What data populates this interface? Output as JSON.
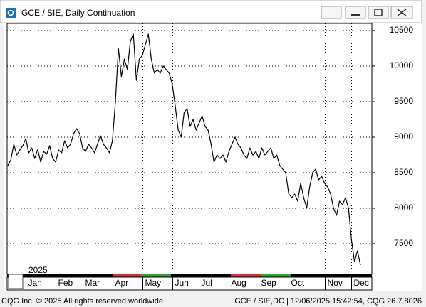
{
  "chart_data": {
    "type": "line",
    "title": "GCE / SIE, Daily Continuation",
    "year_label": "2025",
    "categories": [
      null,
      null,
      null,
      null,
      null,
      null,
      "Jan",
      null,
      null,
      null,
      null,
      null,
      null,
      null,
      null,
      null,
      "Feb",
      null,
      null,
      null,
      null,
      null,
      null,
      null,
      null,
      "Mar",
      null,
      null,
      null,
      null,
      null,
      null,
      null,
      null,
      null,
      "Apr",
      null,
      null,
      null,
      null,
      null,
      null,
      null,
      null,
      null,
      "May",
      null,
      null,
      null,
      null,
      null,
      null,
      null,
      null,
      null,
      "Jun",
      null,
      null,
      null,
      null,
      null,
      null,
      null,
      null,
      "Jul",
      null,
      null,
      null,
      null,
      null,
      null,
      null,
      null,
      null,
      "Aug",
      null,
      null,
      null,
      null,
      null,
      null,
      null,
      null,
      null,
      "Sep",
      null,
      null,
      null,
      null,
      null,
      null,
      null,
      null,
      null,
      "Oct",
      null,
      null,
      null,
      null,
      null,
      null,
      null,
      null,
      null,
      null,
      null,
      "Nov",
      null,
      null,
      null,
      null,
      null,
      null,
      null,
      null,
      "Dec",
      null,
      null,
      null
    ],
    "values": [
      8600,
      8680,
      8900,
      8750,
      8820,
      8880,
      8980,
      8780,
      8850,
      8700,
      8830,
      8650,
      8800,
      8760,
      8880,
      8700,
      8650,
      8820,
      8780,
      8950,
      8850,
      8900,
      9050,
      9120,
      9050,
      8850,
      8800,
      8900,
      8850,
      8780,
      8900,
      9020,
      8900,
      8850,
      8780,
      8950,
      9500,
      10250,
      9850,
      10100,
      9950,
      10350,
      10450,
      9800,
      10100,
      10150,
      10300,
      10450,
      10100,
      9900,
      9950,
      9900,
      10000,
      9950,
      9900,
      9750,
      9450,
      9100,
      9000,
      9350,
      9400,
      9150,
      9250,
      9100,
      9200,
      9300,
      9150,
      9100,
      8900,
      8650,
      8750,
      8700,
      8750,
      8650,
      8800,
      8900,
      9000,
      8900,
      8850,
      8750,
      8700,
      8850,
      8750,
      8800,
      8700,
      8850,
      8750,
      8800,
      8850,
      8700,
      8750,
      8600,
      8550,
      8500,
      8200,
      8150,
      8200,
      8100,
      8350,
      8150,
      8000,
      8300,
      8500,
      8550,
      8400,
      8450,
      8350,
      8300,
      8200,
      8000,
      7900,
      8100,
      8050,
      8150,
      8000,
      7550,
      7250,
      7400,
      7200
    ],
    "color": "#000000",
    "ylim": [
      7070,
      10600
    ],
    "yticks": [
      7500,
      8000,
      8500,
      9000,
      9500,
      10000,
      10500
    ],
    "grid": true
  },
  "footer": {
    "left": "CQG Inc. © 2025 All rights reserved worldwide",
    "right": "GCE / SIE,DC | 12/06/2025 15:42:54, CQG 26.7.8026"
  }
}
